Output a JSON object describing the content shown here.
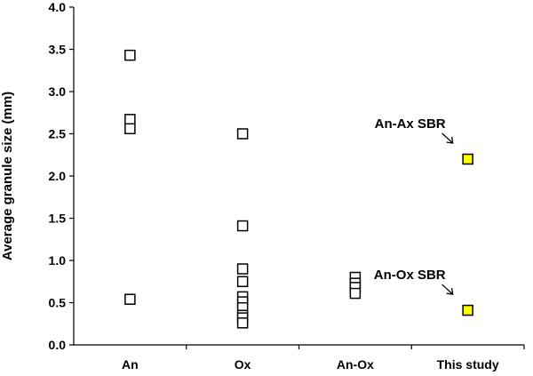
{
  "chart_data": {
    "type": "scatter",
    "title": "",
    "xlabel": "",
    "ylabel": "Average granule size (mm)",
    "ylim": [
      0,
      4.0
    ],
    "yticks": [
      "0.0",
      "0.5",
      "1.0",
      "1.5",
      "2.0",
      "2.5",
      "3.0",
      "3.5",
      "4.0"
    ],
    "categories": [
      "An",
      "Ox",
      "An-Ox",
      "This study"
    ],
    "grid": false,
    "legend": "none",
    "series": [
      {
        "category": "An",
        "fill": "#ffffff",
        "values": [
          3.43,
          2.67,
          2.56,
          0.54
        ]
      },
      {
        "category": "Ox",
        "fill": "#ffffff",
        "values": [
          2.5,
          1.41,
          0.9,
          0.75,
          0.57,
          0.51,
          0.44,
          0.35,
          0.32,
          0.26
        ]
      },
      {
        "category": "An-Ox",
        "fill": "#ffffff",
        "values": [
          0.8,
          0.73,
          0.68,
          0.61
        ]
      },
      {
        "category": "This study",
        "fill": "#ffff00",
        "values": [
          2.2,
          0.41
        ]
      }
    ],
    "annotations": [
      {
        "text": "An-Ax SBR",
        "category": "This study",
        "target": 2.2
      },
      {
        "text": "An-Ox SBR",
        "category": "This study",
        "target": 0.41
      }
    ]
  }
}
